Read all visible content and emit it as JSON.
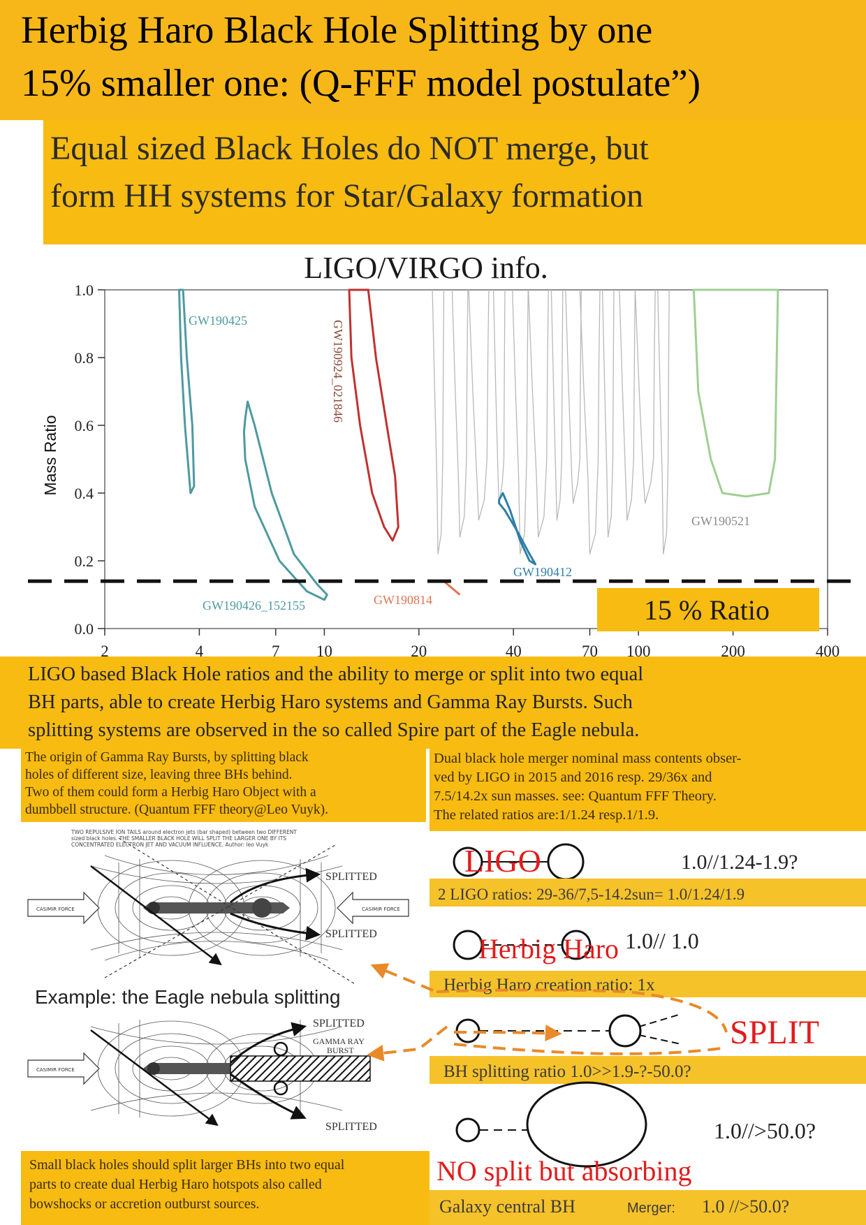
{
  "header": {
    "title_line1": "Herbig Haro Black Hole Splitting by one",
    "title_line2": "15% smaller one: (Q-FFF model postulate”)",
    "subtitle_line1": "Equal sized Black Holes do NOT merge, but",
    "subtitle_line2": "form HH systems for Star/Galaxy formation"
  },
  "chart_data": {
    "type": "contour",
    "title": "LIGO/VIRGO info.",
    "ylabel": "Mass Ratio",
    "xlabel": "",
    "xscale": "log",
    "xlim": [
      2,
      400
    ],
    "ylim": [
      0.0,
      1.0
    ],
    "xticks": [
      "2",
      "4",
      "7",
      "10",
      "20",
      "40",
      "70",
      "100",
      "200",
      "400"
    ],
    "yticks": [
      "0.0",
      "0.2",
      "0.4",
      "0.6",
      "0.8",
      "1.0"
    ],
    "threshold": {
      "value": 0.14,
      "label": "15 % Ratio"
    },
    "series": [
      {
        "name": "GW190425",
        "color": "#4d9aa0",
        "points": [
          [
            3.45,
            1.0
          ],
          [
            3.5,
            0.8
          ],
          [
            3.6,
            0.6
          ],
          [
            3.75,
            0.4
          ],
          [
            3.85,
            0.42
          ],
          [
            3.8,
            0.6
          ],
          [
            3.65,
            0.8
          ],
          [
            3.55,
            1.0
          ]
        ]
      },
      {
        "name": "GW190426_152155",
        "color": "#4d9aa0",
        "points": [
          [
            5.6,
            0.62
          ],
          [
            5.7,
            0.67
          ],
          [
            6.0,
            0.6
          ],
          [
            6.8,
            0.4
          ],
          [
            8.0,
            0.22
          ],
          [
            9.5,
            0.13
          ],
          [
            10.2,
            0.1
          ],
          [
            10.0,
            0.085
          ],
          [
            8.8,
            0.11
          ],
          [
            7.2,
            0.2
          ],
          [
            6.0,
            0.36
          ],
          [
            5.6,
            0.5
          ],
          [
            5.55,
            0.58
          ]
        ]
      },
      {
        "name": "GW190924_021846",
        "color": "#c0312e",
        "labelColor": "#8c4a3a",
        "points": [
          [
            12.0,
            1.0
          ],
          [
            12.2,
            0.8
          ],
          [
            13.0,
            0.6
          ],
          [
            14.2,
            0.4
          ],
          [
            15.5,
            0.3
          ],
          [
            16.5,
            0.26
          ],
          [
            17.2,
            0.3
          ],
          [
            16.8,
            0.45
          ],
          [
            15.8,
            0.6
          ],
          [
            14.6,
            0.8
          ],
          [
            13.8,
            1.0
          ]
        ]
      },
      {
        "name": "GW190814",
        "color": "#e0734e",
        "points": [
          [
            24,
            0.14
          ],
          [
            27,
            0.1
          ]
        ]
      },
      {
        "name": "GW190412",
        "color": "#2f7ea8",
        "points": [
          [
            36,
            0.38
          ],
          [
            37,
            0.4
          ],
          [
            39,
            0.35
          ],
          [
            42,
            0.26
          ],
          [
            45,
            0.2
          ],
          [
            47,
            0.19
          ],
          [
            45,
            0.22
          ],
          [
            41,
            0.29
          ],
          [
            37.5,
            0.35
          ],
          [
            36,
            0.37
          ]
        ]
      },
      {
        "name": "GW190521",
        "color": "#9fcf92",
        "labelColor": "#8a8a8a",
        "points": [
          [
            150,
            1.0
          ],
          [
            155,
            0.7
          ],
          [
            170,
            0.5
          ],
          [
            185,
            0.4
          ],
          [
            220,
            0.39
          ],
          [
            260,
            0.4
          ],
          [
            272,
            0.5
          ],
          [
            278,
            1.0
          ]
        ]
      }
    ]
  },
  "caption": {
    "line1": "LIGO based Black Hole ratios and the ability to merge or split into two equal",
    "line2": "BH parts, able to create Herbig Haro systems and Gamma Ray Bursts.   Such",
    "line3": "splitting systems are observed in the so called Spire part of the Eagle nebula."
  },
  "left_note": {
    "line1": "The origin of Gamma Ray Bursts, by splitting black",
    "line2": "holes of different size, leaving three BHs behind.",
    "line3": "Two of them could form a Herbig Haro Object  with a",
    "line4": "dumbbell structure. (Quantum FFF theory@Leo Vuyk)."
  },
  "right_note": {
    "line1": "Dual black hole merger nominal mass contents obser-",
    "line2": "ved by LIGO in 2015 and 2016 resp. 29/36x and",
    "line3": "7.5/14.2x sun masses.  see: Quantum FFF Theory.",
    "line4": "The related ratios are:1/1.24 resp.1/1.9."
  },
  "diagram": {
    "tiny_caption_line1": "TWO REPULSIVE ION TAILS around electron jets (bar shaped) between two DIFFERENT",
    "tiny_caption_line2": "sized black holes. THE SMALLER BLACK HOLE WILL SPLIT THE LARGER ONE BY ITS",
    "tiny_caption_line3": "CONCENTRATED ELECTRON JET AND VACUUM INFLUENCE. Author: leo Vuyk",
    "casimir_label": "CASIMIR FORCE",
    "splitted_label": "SPLITTED",
    "gamma_ray_label_line1": "GAMMA RAY",
    "gamma_ray_label_line2": "BURST",
    "eagle_label": "Example: the Eagle nebula splitting"
  },
  "ratios": {
    "ligo_label": "LIGO",
    "ligo_ratio": "1.0//1.24-1.9?",
    "ligo_band": "2 LIGO ratios: 29-36/7,5-14.2sun= 1.0/1.24/1.9",
    "hh_label": "Herbig Haro",
    "hh_ratio": "1.0// 1.0",
    "hh_band": "Herbig Haro creation ratio: 1x",
    "split_label": "SPLIT",
    "split_band": "BH splitting ratio 1.0>>1.9-?-50.0?",
    "absorb_ratio": "1.0//>50.0?",
    "absorb_label": "NO split but absorbing",
    "galaxy_band_prefix": "Galaxy central BH",
    "galaxy_band_mid": "Merger:",
    "galaxy_band_value": "1.0 //>50.0?"
  },
  "bottom_note": {
    "line1": "Small black holes should split larger BHs into two equal",
    "line2": "parts to create dual Herbig Haro hotspots also called",
    "line3": "bowshocks or accretion outburst sources."
  }
}
